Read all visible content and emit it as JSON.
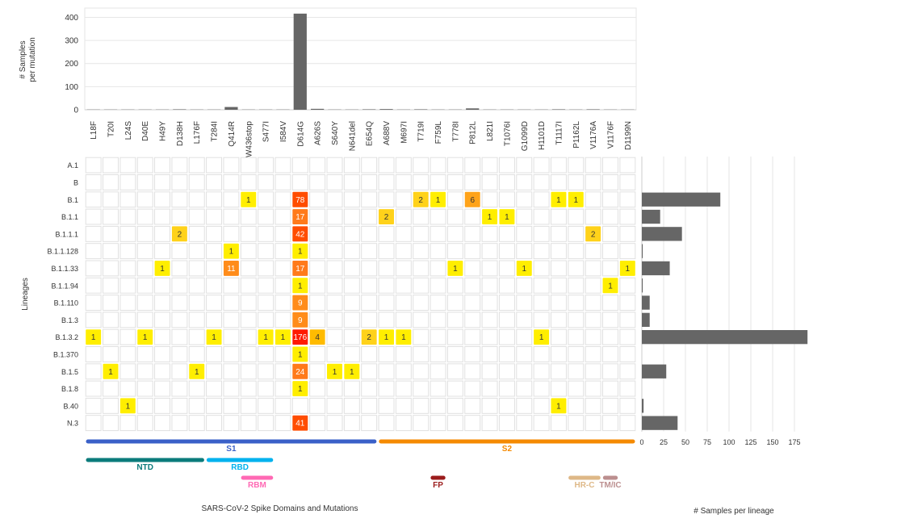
{
  "chart_data": [
    {
      "type": "bar",
      "ylabel": "# Samples per mutation",
      "ylim": [
        0,
        440
      ],
      "yticks": [
        0,
        100,
        200,
        300,
        400
      ],
      "grid": true,
      "categories": [
        "L18F",
        "T20I",
        "L24S",
        "D40E",
        "H49Y",
        "D138H",
        "L176F",
        "T284I",
        "Q414R",
        "W436stop",
        "S477I",
        "I584V",
        "D614G",
        "A626S",
        "S640Y",
        "N641del",
        "E654Q",
        "A688V",
        "M697I",
        "T719I",
        "F759L",
        "T778I",
        "P812L",
        "L821I",
        "T1076I",
        "G1099D",
        "H1101D",
        "T1117I",
        "P1162L",
        "V1176A",
        "V1176F",
        "D1199N"
      ],
      "values": [
        1,
        1,
        1,
        1,
        1,
        2,
        1,
        1,
        12,
        1,
        1,
        1,
        416,
        4,
        1,
        1,
        2,
        3,
        1,
        2,
        1,
        1,
        6,
        1,
        1,
        1,
        1,
        2,
        1,
        2,
        1,
        1
      ],
      "color": "#666666"
    },
    {
      "type": "heatmap",
      "ylabel": "Lineages",
      "lineages": [
        "A.1",
        "B",
        "B.1",
        "B.1.1",
        "B.1.1.1",
        "B.1.1.128",
        "B.1.1.33",
        "B.1.1.94",
        "B.1.110",
        "B.1.3",
        "B.1.3.2",
        "B.1.370",
        "B.1.5",
        "B.1.8",
        "B.40",
        "N.3"
      ],
      "cells": [
        {
          "lineage": "B.1",
          "mutation": "W436stop",
          "value": 1
        },
        {
          "lineage": "B.1",
          "mutation": "D614G",
          "value": 78
        },
        {
          "lineage": "B.1",
          "mutation": "T719I",
          "value": 2
        },
        {
          "lineage": "B.1",
          "mutation": "F759L",
          "value": 1
        },
        {
          "lineage": "B.1",
          "mutation": "P812L",
          "value": 6
        },
        {
          "lineage": "B.1",
          "mutation": "T1117I",
          "value": 1
        },
        {
          "lineage": "B.1",
          "mutation": "P1162L",
          "value": 1
        },
        {
          "lineage": "B.1.1",
          "mutation": "D614G",
          "value": 17
        },
        {
          "lineage": "B.1.1",
          "mutation": "A688V",
          "value": 2
        },
        {
          "lineage": "B.1.1",
          "mutation": "L821I",
          "value": 1
        },
        {
          "lineage": "B.1.1",
          "mutation": "T1076I",
          "value": 1
        },
        {
          "lineage": "B.1.1.1",
          "mutation": "D138H",
          "value": 2
        },
        {
          "lineage": "B.1.1.1",
          "mutation": "D614G",
          "value": 42
        },
        {
          "lineage": "B.1.1.1",
          "mutation": "V1176A",
          "value": 2
        },
        {
          "lineage": "B.1.1.128",
          "mutation": "Q414R",
          "value": 1
        },
        {
          "lineage": "B.1.1.128",
          "mutation": "D614G",
          "value": 1
        },
        {
          "lineage": "B.1.1.33",
          "mutation": "H49Y",
          "value": 1
        },
        {
          "lineage": "B.1.1.33",
          "mutation": "Q414R",
          "value": 11
        },
        {
          "lineage": "B.1.1.33",
          "mutation": "D614G",
          "value": 17
        },
        {
          "lineage": "B.1.1.33",
          "mutation": "T778I",
          "value": 1
        },
        {
          "lineage": "B.1.1.33",
          "mutation": "G1099D",
          "value": 1
        },
        {
          "lineage": "B.1.1.33",
          "mutation": "D1199N",
          "value": 1
        },
        {
          "lineage": "B.1.1.94",
          "mutation": "D614G",
          "value": 1
        },
        {
          "lineage": "B.1.1.94",
          "mutation": "V1176F",
          "value": 1
        },
        {
          "lineage": "B.1.110",
          "mutation": "D614G",
          "value": 9
        },
        {
          "lineage": "B.1.3",
          "mutation": "D614G",
          "value": 9
        },
        {
          "lineage": "B.1.3.2",
          "mutation": "L18F",
          "value": 1
        },
        {
          "lineage": "B.1.3.2",
          "mutation": "D40E",
          "value": 1
        },
        {
          "lineage": "B.1.3.2",
          "mutation": "T284I",
          "value": 1
        },
        {
          "lineage": "B.1.3.2",
          "mutation": "S477I",
          "value": 1
        },
        {
          "lineage": "B.1.3.2",
          "mutation": "I584V",
          "value": 1
        },
        {
          "lineage": "B.1.3.2",
          "mutation": "D614G",
          "value": 176
        },
        {
          "lineage": "B.1.3.2",
          "mutation": "A626S",
          "value": 4
        },
        {
          "lineage": "B.1.3.2",
          "mutation": "E654Q",
          "value": 2
        },
        {
          "lineage": "B.1.3.2",
          "mutation": "A688V",
          "value": 1
        },
        {
          "lineage": "B.1.3.2",
          "mutation": "M697I",
          "value": 1
        },
        {
          "lineage": "B.1.3.2",
          "mutation": "H1101D",
          "value": 1
        },
        {
          "lineage": "B.1.370",
          "mutation": "D614G",
          "value": 1
        },
        {
          "lineage": "B.1.5",
          "mutation": "T20I",
          "value": 1
        },
        {
          "lineage": "B.1.5",
          "mutation": "L176F",
          "value": 1
        },
        {
          "lineage": "B.1.5",
          "mutation": "D614G",
          "value": 24
        },
        {
          "lineage": "B.1.5",
          "mutation": "S640Y",
          "value": 1
        },
        {
          "lineage": "B.1.5",
          "mutation": "N641del",
          "value": 1
        },
        {
          "lineage": "B.1.8",
          "mutation": "D614G",
          "value": 1
        },
        {
          "lineage": "B.40",
          "mutation": "L24S",
          "value": 1
        },
        {
          "lineage": "B.40",
          "mutation": "T1117I",
          "value": 1
        },
        {
          "lineage": "N.3",
          "mutation": "D614G",
          "value": 41
        }
      ]
    },
    {
      "type": "bar",
      "orientation": "horizontal",
      "xlabel": "# Samples per lineage",
      "xlim": [
        0,
        200
      ],
      "xticks": [
        0,
        25,
        50,
        75,
        100,
        125,
        150,
        175
      ],
      "grid": true,
      "categories": [
        "A.1",
        "B",
        "B.1",
        "B.1.1",
        "B.1.1.1",
        "B.1.1.128",
        "B.1.1.33",
        "B.1.1.94",
        "B.1.110",
        "B.1.3",
        "B.1.3.2",
        "B.1.370",
        "B.1.5",
        "B.1.8",
        "B.40",
        "N.3"
      ],
      "values": [
        0,
        0,
        90,
        21,
        46,
        1,
        32,
        1,
        9,
        9,
        190,
        0,
        28,
        0,
        2,
        41
      ],
      "color": "#666666"
    }
  ],
  "domains": {
    "title": "SARS-CoV-2 Spike Domains and Mutations",
    "items": [
      {
        "name": "S1",
        "start": "L18F",
        "end": "E654Q",
        "color": "#3a60c8",
        "row": 0
      },
      {
        "name": "S2",
        "start": "A688V",
        "end": "D1199N",
        "color": "#f58a00",
        "row": 0
      },
      {
        "name": "NTD",
        "start": "L18F",
        "end": "L176F",
        "color": "#0b7b7b",
        "row": 1
      },
      {
        "name": "RBD",
        "start": "T284I",
        "end": "S477I",
        "color": "#00b2ee",
        "row": 1
      },
      {
        "name": "RBM",
        "start": "W436stop",
        "end": "S477I",
        "color": "#ff69b4",
        "row": 2
      },
      {
        "name": "FP",
        "start": "F759L",
        "end": "F759L",
        "color": "#9b1c1c",
        "row": 2
      },
      {
        "name": "HR-C",
        "start": "P1162L",
        "end": "V1176A",
        "color": "#deb887",
        "row": 2
      },
      {
        "name": "TM/IC",
        "start": "V1176F",
        "end": "V1176F",
        "color": "#bc8f8f",
        "row": 2
      }
    ]
  }
}
